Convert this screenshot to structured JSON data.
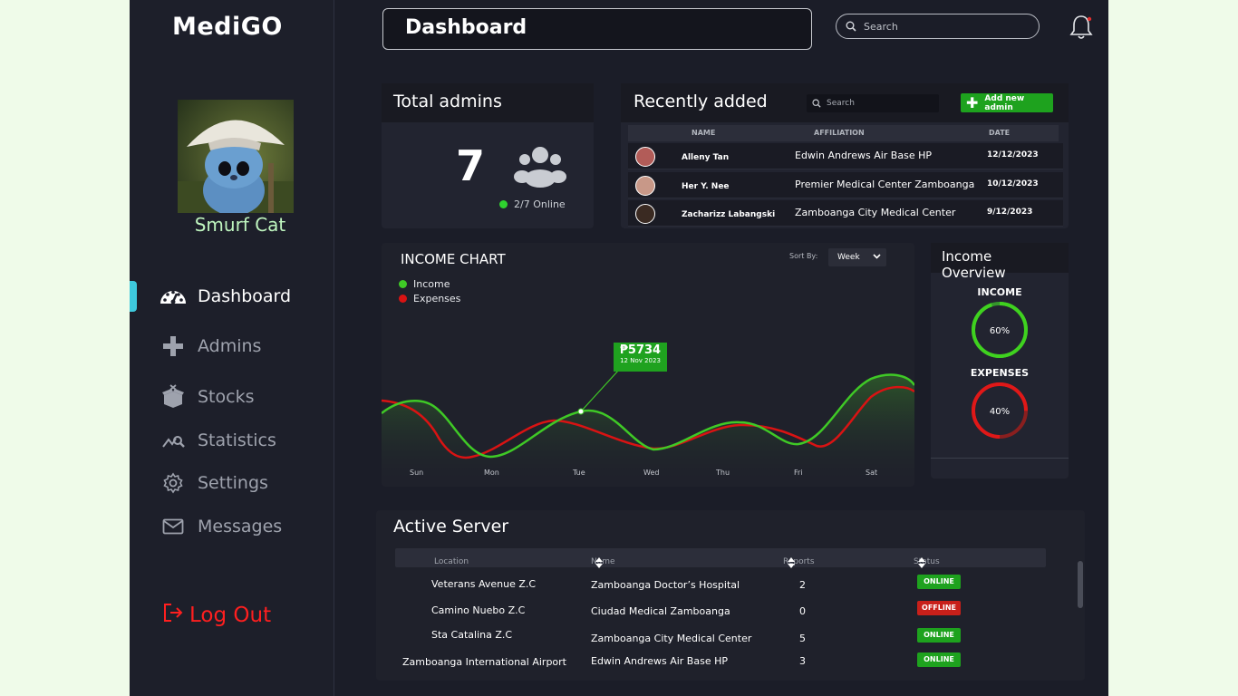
{
  "app": {
    "logo": "MediGO"
  },
  "user": {
    "name": "Smurf Cat"
  },
  "nav": {
    "items": [
      {
        "label": "Dashboard",
        "icon": "gauge-icon",
        "active": true
      },
      {
        "label": "Admins",
        "icon": "plus-icon"
      },
      {
        "label": "Stocks",
        "icon": "box-icon"
      },
      {
        "label": "Statistics",
        "icon": "chart-search-icon"
      },
      {
        "label": "Settings",
        "icon": "gear-icon"
      },
      {
        "label": "Messages",
        "icon": "mail-icon"
      }
    ],
    "logout": "Log Out"
  },
  "header": {
    "title": "Dashboard",
    "search_placeholder": "Search"
  },
  "total_admins": {
    "title": "Total admins",
    "count": "7",
    "online": "2/7  Online"
  },
  "recently_added": {
    "title": "Recently added",
    "search_placeholder": "Search",
    "add_button": "Add new admin",
    "columns": [
      "NAME",
      "AFFILIATION",
      "DATE"
    ],
    "rows": [
      {
        "name": "Alleny Tan",
        "affiliation": "Edwin Andrews Air Base HP",
        "date": "12/12/2023"
      },
      {
        "name": "Her Y. Nee",
        "affiliation": "Premier Medical Center Zamboanga",
        "date": "10/12/2023"
      },
      {
        "name": "Zacharizz Labangski",
        "affiliation": "Zamboanga City Medical Center",
        "date": "9/12/2023"
      }
    ]
  },
  "income_chart": {
    "title": "INCOME CHART",
    "sort_label": "Sort By:",
    "sort_value": "Week",
    "legend": [
      "Income",
      "Expenses"
    ],
    "tooltip": {
      "value": "₱5734",
      "date": "12 Nov 2023"
    }
  },
  "chart_data": {
    "type": "line",
    "title": "INCOME CHART",
    "x": [
      "Sun",
      "Mon",
      "Tue",
      "Wed",
      "Thu",
      "Fri",
      "Sat"
    ],
    "series": [
      {
        "name": "Income",
        "color": "#3fc926"
      },
      {
        "name": "Expenses",
        "color": "#d91313"
      }
    ],
    "annotation": {
      "x": "Tue",
      "label": "₱5734",
      "sublabel": "12 Nov 2023"
    },
    "grid": false,
    "legend": "top-left"
  },
  "income_overview": {
    "title": "Income Overview",
    "income_label": "INCOME",
    "income_pct": "60%",
    "income_value": 0.6,
    "expenses_label": "EXPENSES",
    "expenses_pct": "40%",
    "expenses_value": 0.4
  },
  "active_server": {
    "title": "Active Server",
    "columns": [
      "Location",
      "Name",
      "Reports",
      "Status"
    ],
    "rows": [
      {
        "location": "Veterans Avenue Z.C",
        "name": "Zamboanga Doctor’s Hospital",
        "reports": "2",
        "status": "ONLINE"
      },
      {
        "location": "Camino Nuebo Z.C",
        "name": "Ciudad Medical Zamboanga",
        "reports": "0",
        "status": "OFFLINE"
      },
      {
        "location": "Sta Catalina Z.C",
        "name": "Zamboanga City Medical Center",
        "reports": "5",
        "status": "ONLINE"
      },
      {
        "location": "Zamboanga International Airport",
        "name": "Edwin Andrews Air Base HP",
        "reports": "3",
        "status": "ONLINE"
      }
    ]
  },
  "colors": {
    "online": "#1ea21e",
    "offline": "#c8201a",
    "accent": "#3ec9dd",
    "logout": "#ff1f1f"
  }
}
